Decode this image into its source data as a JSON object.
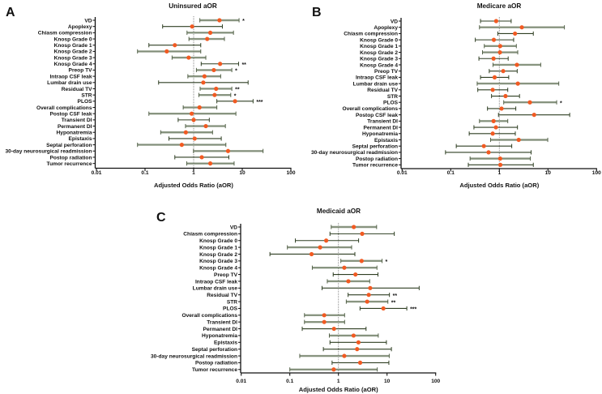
{
  "figure": {
    "colors": {
      "point": "#f15a22",
      "dark_bar": "#2f3f23",
      "light_bar": "#8f9b87",
      "reference_line": "#8a8a8a",
      "axis": "#111111"
    }
  },
  "chart_data": [
    {
      "type": "scatter",
      "subtype": "forest-plot",
      "panel_label": "A",
      "title": "Uninsured aOR",
      "xlabel": "Adjusted Odds Ratio (aOR)",
      "ylabel": "",
      "xscale": "log",
      "xlim": [
        0.01,
        100
      ],
      "xticks": [
        "0.01",
        "0.1",
        "1",
        "10",
        "100"
      ],
      "reference_line": 1,
      "grid": false,
      "rows": [
        {
          "label": "VD",
          "aor": 3.4,
          "ci": [
            1.34,
            8.6
          ],
          "sig": "*",
          "bar": "light"
        },
        {
          "label": "Apoplexy",
          "aor": 0.93,
          "ci": [
            0.23,
            3.9
          ],
          "sig": "",
          "bar": "dark"
        },
        {
          "label": "Chiasm compression",
          "aor": 2.2,
          "ci": [
            0.73,
            6.6
          ],
          "sig": "",
          "bar": "light"
        },
        {
          "label": "Knosp Grade 0",
          "aor": 1.9,
          "ci": [
            0.8,
            4.3
          ],
          "sig": "",
          "bar": "light"
        },
        {
          "label": "Knosp Grade 1",
          "aor": 0.41,
          "ci": [
            0.12,
            1.4
          ],
          "sig": "",
          "bar": "dark"
        },
        {
          "label": "Knosp Grade 2",
          "aor": 0.28,
          "ci": [
            0.07,
            1.4
          ],
          "sig": "",
          "bar": "light"
        },
        {
          "label": "Knosp Grade 3",
          "aor": 0.79,
          "ci": [
            0.36,
            1.78
          ],
          "sig": "",
          "bar": "light"
        },
        {
          "label": "Knosp Grade 4",
          "aor": 3.5,
          "ci": [
            1.43,
            8.4
          ],
          "sig": "**",
          "bar": "dark"
        },
        {
          "label": "Preop TV",
          "aor": 2.6,
          "ci": [
            1.14,
            6.1
          ],
          "sig": "*",
          "bar": "light"
        },
        {
          "label": "Intraop CSF leak",
          "aor": 1.67,
          "ci": [
            0.76,
            3.6
          ],
          "sig": "",
          "bar": "light"
        },
        {
          "label": "Lumbar drain use",
          "aor": 1.58,
          "ci": [
            0.19,
            13.2
          ],
          "sig": "",
          "bar": "dark"
        },
        {
          "label": "Residual TV",
          "aor": 2.9,
          "ci": [
            1.36,
            6.1
          ],
          "sig": "**",
          "bar": "light"
        },
        {
          "label": "STR",
          "aor": 2.7,
          "ci": [
            1.28,
            5.8
          ],
          "sig": "*",
          "bar": "light"
        },
        {
          "label": "PLOS",
          "aor": 7.1,
          "ci": [
            3.0,
            16.7
          ],
          "sig": "***",
          "bar": "dark"
        },
        {
          "label": "Overall complications",
          "aor": 1.32,
          "ci": [
            0.61,
            3.0
          ],
          "sig": "",
          "bar": "light"
        },
        {
          "label": "Postop CSF leak",
          "aor": 0.91,
          "ci": [
            0.12,
            7.4
          ],
          "sig": "",
          "bar": "light"
        },
        {
          "label": "Transient DI",
          "aor": 1.0,
          "ci": [
            0.48,
            2.1
          ],
          "sig": "",
          "bar": "dark"
        },
        {
          "label": "Permanent DI",
          "aor": 1.78,
          "ci": [
            0.68,
            4.5
          ],
          "sig": "",
          "bar": "light"
        },
        {
          "label": "Hyponatremia",
          "aor": 0.69,
          "ci": [
            0.21,
            2.45
          ],
          "sig": "",
          "bar": "light"
        },
        {
          "label": "Epistaxis",
          "aor": 1.05,
          "ci": [
            0.31,
            3.7
          ],
          "sig": "",
          "bar": "dark"
        },
        {
          "label": "Septal perforation",
          "aor": 0.57,
          "ci": [
            0.07,
            4.6
          ],
          "sig": "",
          "bar": "light"
        },
        {
          "label": "30-day neurosurgical readmission",
          "aor": 5.1,
          "ci": [
            0.99,
            26.8
          ],
          "sig": "",
          "bar": "light"
        },
        {
          "label": "Postop radiation",
          "aor": 1.47,
          "ci": [
            0.41,
            5.3
          ],
          "sig": "",
          "bar": "dark"
        },
        {
          "label": "Tumor recurrence",
          "aor": 2.2,
          "ci": [
            0.72,
            6.8
          ],
          "sig": "",
          "bar": "light"
        }
      ]
    },
    {
      "type": "scatter",
      "subtype": "forest-plot",
      "panel_label": "B",
      "title": "Medicare aOR",
      "xlabel": "Adjusted Odds Ratio (aOR)",
      "ylabel": "",
      "xscale": "log",
      "xlim": [
        0.01,
        100
      ],
      "xticks": [
        "0.01",
        "0.1",
        "1",
        "10",
        "100"
      ],
      "reference_line": 1,
      "grid": false,
      "rows": [
        {
          "label": "VD",
          "aor": 0.86,
          "ci": [
            0.41,
            1.75
          ],
          "sig": "",
          "bar": "dark"
        },
        {
          "label": "Apoplexy",
          "aor": 2.9,
          "ci": [
            0.39,
            21.8
          ],
          "sig": "",
          "bar": "light"
        },
        {
          "label": "Chiasm compression",
          "aor": 2.1,
          "ci": [
            0.93,
            5.0
          ],
          "sig": "",
          "bar": "dark"
        },
        {
          "label": "Knosp Grade 0",
          "aor": 0.77,
          "ci": [
            0.32,
            1.97
          ],
          "sig": "",
          "bar": "dark"
        },
        {
          "label": "Knosp Grade 1",
          "aor": 1.04,
          "ci": [
            0.49,
            2.24
          ],
          "sig": "",
          "bar": "light"
        },
        {
          "label": "Knosp Grade 2",
          "aor": 1.03,
          "ci": [
            0.45,
            2.39
          ],
          "sig": "",
          "bar": "light"
        },
        {
          "label": "Knosp Grade 3",
          "aor": 0.76,
          "ci": [
            0.38,
            1.52
          ],
          "sig": "",
          "bar": "dark"
        },
        {
          "label": "Knosp Grade 4",
          "aor": 2.3,
          "ci": [
            0.74,
            7.1
          ],
          "sig": "",
          "bar": "light"
        },
        {
          "label": "Preop TV",
          "aor": 1.2,
          "ci": [
            0.62,
            2.33
          ],
          "sig": "",
          "bar": "dark"
        },
        {
          "label": "Intraop CSF leak",
          "aor": 0.8,
          "ci": [
            0.41,
            1.56
          ],
          "sig": "",
          "bar": "dark"
        },
        {
          "label": "Lumbar drain use",
          "aor": 2.4,
          "ci": [
            0.35,
            16.7
          ],
          "sig": "",
          "bar": "light"
        },
        {
          "label": "Residual TV",
          "aor": 0.73,
          "ci": [
            0.36,
            1.49
          ],
          "sig": "",
          "bar": "dark"
        },
        {
          "label": "STR",
          "aor": 1.34,
          "ci": [
            0.69,
            2.6
          ],
          "sig": "",
          "bar": "dark"
        },
        {
          "label": "PLOS",
          "aor": 4.25,
          "ci": [
            1.23,
            15.1
          ],
          "sig": "*",
          "bar": "light"
        },
        {
          "label": "Overall complications",
          "aor": 1.11,
          "ci": [
            0.57,
            2.18
          ],
          "sig": "",
          "bar": "dark"
        },
        {
          "label": "Postop CSF leak",
          "aor": 5.2,
          "ci": [
            0.96,
            28.0
          ],
          "sig": "",
          "bar": "dark"
        },
        {
          "label": "Transient DI",
          "aor": 0.76,
          "ci": [
            0.39,
            1.49
          ],
          "sig": "",
          "bar": "light"
        },
        {
          "label": "Permanent DI",
          "aor": 0.85,
          "ci": [
            0.3,
            2.36
          ],
          "sig": "",
          "bar": "dark"
        },
        {
          "label": "Hyponatremia",
          "aor": 0.73,
          "ci": [
            0.24,
            2.13
          ],
          "sig": "",
          "bar": "dark"
        },
        {
          "label": "Epistaxis",
          "aor": 2.5,
          "ci": [
            0.66,
            9.9
          ],
          "sig": "",
          "bar": "light"
        },
        {
          "label": "Septal perforation",
          "aor": 0.48,
          "ci": [
            0.13,
            1.8
          ],
          "sig": "",
          "bar": "dark"
        },
        {
          "label": "30-day neurosurgical readmission",
          "aor": 0.6,
          "ci": [
            0.078,
            4.5
          ],
          "sig": "",
          "bar": "dark"
        },
        {
          "label": "Postop radiation",
          "aor": 1.04,
          "ci": [
            0.25,
            4.35
          ],
          "sig": "",
          "bar": "light"
        },
        {
          "label": "Tumor recurrence",
          "aor": 1.05,
          "ci": [
            0.23,
            5.0
          ],
          "sig": "",
          "bar": "dark"
        }
      ]
    },
    {
      "type": "scatter",
      "subtype": "forest-plot",
      "panel_label": "C",
      "title": "Medicaid aOR",
      "xlabel": "Adjusted Odds Ratio (aOR)",
      "ylabel": "",
      "xscale": "log",
      "xlim": [
        0.01,
        100
      ],
      "xticks": [
        "0.01",
        "0.1",
        "1",
        "10",
        "100"
      ],
      "reference_line": 1,
      "grid": false,
      "rows": [
        {
          "label": "VD",
          "aor": 2.07,
          "ci": [
            0.71,
            6.1
          ],
          "sig": "",
          "bar": "light"
        },
        {
          "label": "Chiasm compression",
          "aor": 3.08,
          "ci": [
            0.67,
            14.1
          ],
          "sig": "",
          "bar": "dark"
        },
        {
          "label": "Knosp Grade 0",
          "aor": 0.56,
          "ci": [
            0.13,
            2.6
          ],
          "sig": "",
          "bar": "dark"
        },
        {
          "label": "Knosp Grade 1",
          "aor": 0.42,
          "ci": [
            0.089,
            1.87
          ],
          "sig": "",
          "bar": "light"
        },
        {
          "label": "Knosp Grade 2",
          "aor": 0.28,
          "ci": [
            0.039,
            2.18
          ],
          "sig": "",
          "bar": "dark"
        },
        {
          "label": "Knosp Grade 3",
          "aor": 3.0,
          "ci": [
            1.12,
            7.9
          ],
          "sig": "*",
          "bar": "light"
        },
        {
          "label": "Knosp Grade 4",
          "aor": 1.32,
          "ci": [
            0.29,
            6.2
          ],
          "sig": "",
          "bar": "light"
        },
        {
          "label": "Preop TV",
          "aor": 2.24,
          "ci": [
            0.78,
            6.5
          ],
          "sig": "",
          "bar": "dark"
        },
        {
          "label": "Intraop CSF leak",
          "aor": 1.6,
          "ci": [
            0.59,
            4.4
          ],
          "sig": "",
          "bar": "light"
        },
        {
          "label": "Lumbar drain use",
          "aor": 4.5,
          "ci": [
            0.46,
            45.8
          ],
          "sig": "",
          "bar": "dark"
        },
        {
          "label": "Residual TV",
          "aor": 4.2,
          "ci": [
            1.58,
            11.2
          ],
          "sig": "**",
          "bar": "dark"
        },
        {
          "label": "STR",
          "aor": 3.9,
          "ci": [
            1.45,
            10.4
          ],
          "sig": "**",
          "bar": "light"
        },
        {
          "label": "PLOS",
          "aor": 8.4,
          "ci": [
            2.78,
            25.5
          ],
          "sig": "***",
          "bar": "dark"
        },
        {
          "label": "Overall complications",
          "aor": 0.51,
          "ci": [
            0.2,
            1.34
          ],
          "sig": "",
          "bar": "light"
        },
        {
          "label": "Transient DI",
          "aor": 0.51,
          "ci": [
            0.2,
            1.34
          ],
          "sig": "",
          "bar": "light"
        },
        {
          "label": "Permanent DI",
          "aor": 0.81,
          "ci": [
            0.18,
            3.7
          ],
          "sig": "",
          "bar": "dark"
        },
        {
          "label": "Hyponatremia",
          "aor": 2.05,
          "ci": [
            0.65,
            6.6
          ],
          "sig": "",
          "bar": "light"
        },
        {
          "label": "Epistaxis",
          "aor": 2.58,
          "ci": [
            0.67,
            9.7
          ],
          "sig": "",
          "bar": "dark"
        },
        {
          "label": "Septal perforation",
          "aor": 2.42,
          "ci": [
            0.49,
            12.3
          ],
          "sig": "",
          "bar": "dark"
        },
        {
          "label": "30-day neurosurgical readmission",
          "aor": 1.32,
          "ci": [
            0.16,
            11.1
          ],
          "sig": "",
          "bar": "light"
        },
        {
          "label": "Postop radiation",
          "aor": 2.8,
          "ci": [
            0.74,
            10.9
          ],
          "sig": "",
          "bar": "dark"
        },
        {
          "label": "Tumor recurrence",
          "aor": 0.8,
          "ci": [
            0.1,
            6.3
          ],
          "sig": "",
          "bar": "light"
        }
      ]
    }
  ]
}
